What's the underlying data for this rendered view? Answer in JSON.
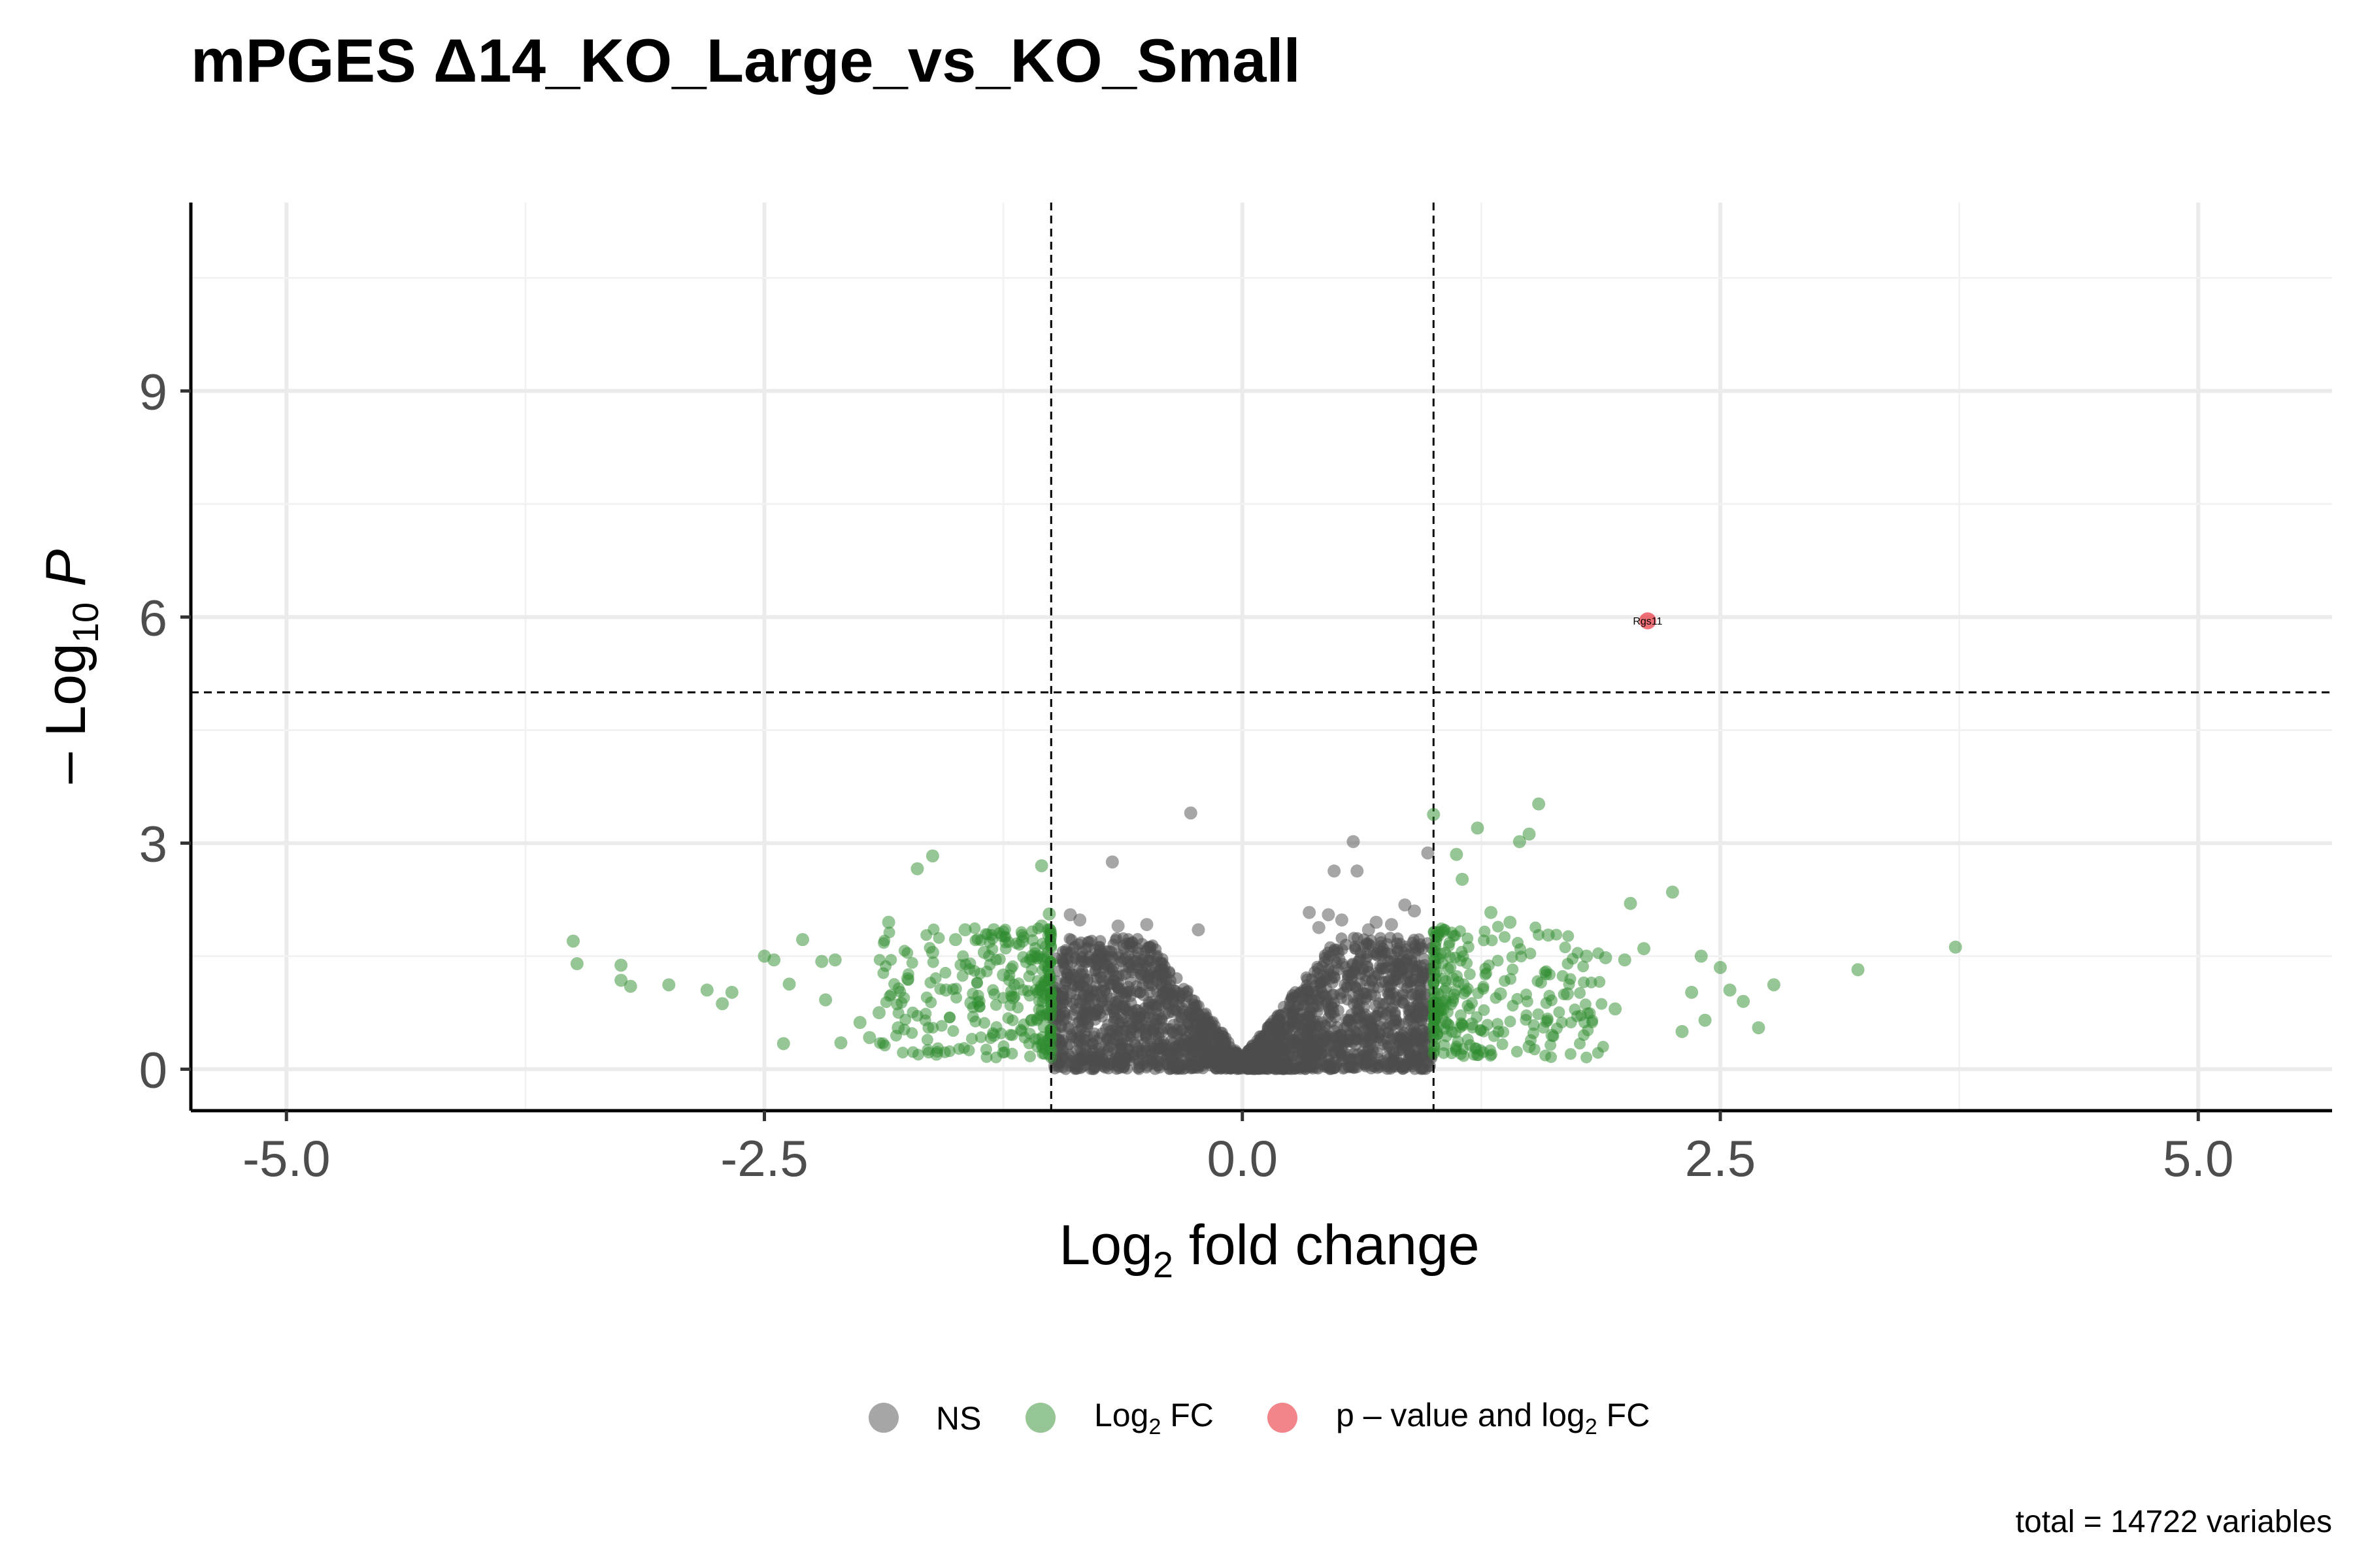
{
  "chart_data": {
    "type": "scatter",
    "title": "mPGES Δ14_KO_Large_vs_KO_Small",
    "xlabel": {
      "main": "Log",
      "sub": "2",
      "rest": " fold change"
    },
    "ylabel": {
      "prefix": "– Log",
      "sub": "10",
      "suffix": " P"
    },
    "xlim": [
      -5.5,
      5.7
    ],
    "ylim": [
      -0.55,
      11.5
    ],
    "x_ticks": [
      -5.0,
      -2.5,
      0.0,
      2.5,
      5.0
    ],
    "x_tick_labels": [
      "-5.0",
      "-2.5",
      "0.0",
      "2.5",
      "5.0"
    ],
    "y_ticks": [
      0,
      3,
      6,
      9
    ],
    "y_tick_labels": [
      "0",
      "3",
      "6",
      "9"
    ],
    "grid": true,
    "cutoffs": {
      "log2fc": [
        -1,
        1
      ],
      "neglog10p": 5
    },
    "colors": {
      "ns": "#4d4d4d",
      "log2fc": "#2e8b2e",
      "p_and_log2fc": "#e8333c"
    },
    "legend": {
      "position": "bottom",
      "items": [
        {
          "key": "ns",
          "label": "NS"
        },
        {
          "key": "log2fc",
          "label_main": "Log",
          "label_sub": "2",
          "label_rest": " FC"
        },
        {
          "key": "p_and_log2fc",
          "label_main": "p – value and log",
          "label_sub": "2",
          "label_rest": " FC"
        }
      ]
    },
    "caption": "total = 14722 variables",
    "series": [
      {
        "name": "NS",
        "key": "ns",
        "values": [
          [
            -0.27,
            3.4
          ],
          [
            -0.68,
            2.75
          ],
          [
            0.48,
            2.63
          ],
          [
            0.6,
            2.63
          ],
          [
            0.58,
            3.02
          ],
          [
            0.97,
            2.87
          ],
          [
            0.35,
            2.08
          ],
          [
            0.45,
            2.05
          ],
          [
            0.52,
            1.98
          ],
          [
            0.7,
            1.95
          ],
          [
            0.78,
            1.92
          ],
          [
            0.85,
            2.18
          ],
          [
            0.9,
            2.1
          ],
          [
            -0.5,
            1.92
          ],
          [
            -0.65,
            1.9
          ],
          [
            -0.85,
            1.98
          ],
          [
            -0.9,
            2.05
          ],
          [
            -0.23,
            1.85
          ],
          [
            0.4,
            1.88
          ],
          [
            0.66,
            1.85
          ]
        ]
      },
      {
        "name": "Log2 FC",
        "key": "log2fc",
        "values": [
          [
            -3.5,
            1.7
          ],
          [
            -3.48,
            1.4
          ],
          [
            -3.25,
            1.38
          ],
          [
            -3.25,
            1.18
          ],
          [
            -3.2,
            1.1
          ],
          [
            -3.0,
            1.12
          ],
          [
            -2.8,
            1.05
          ],
          [
            -2.72,
            0.87
          ],
          [
            -2.67,
            1.02
          ],
          [
            -2.5,
            1.5
          ],
          [
            -2.45,
            1.45
          ],
          [
            -2.4,
            0.34
          ],
          [
            -2.37,
            1.13
          ],
          [
            -2.3,
            1.72
          ],
          [
            -2.2,
            1.43
          ],
          [
            -2.13,
            1.45
          ],
          [
            -2.18,
            0.92
          ],
          [
            -2.1,
            0.35
          ],
          [
            -1.7,
            2.66
          ],
          [
            -1.62,
            2.83
          ],
          [
            -1.85,
            1.95
          ],
          [
            -1.05,
            2.7
          ],
          [
            -1.01,
            2.06
          ],
          [
            -1.9,
            0.75
          ],
          [
            -1.75,
            1.2
          ],
          [
            -1.62,
            1.55
          ],
          [
            -1.5,
            1.72
          ],
          [
            -1.42,
            0.88
          ],
          [
            -1.45,
            1.85
          ],
          [
            -1.35,
            1.55
          ],
          [
            -1.3,
            0.45
          ],
          [
            -1.25,
            1.25
          ],
          [
            -1.2,
            0.95
          ],
          [
            -1.15,
            1.7
          ],
          [
            -1.1,
            0.65
          ],
          [
            -1.95,
            0.42
          ],
          [
            -2.0,
            0.62
          ],
          [
            -1.8,
            0.55
          ],
          [
            -1.6,
            0.2
          ],
          [
            -1.55,
            1.05
          ],
          [
            -1.3,
            1.85
          ],
          [
            -1.1,
            1.5
          ],
          [
            -1.05,
            1.9
          ],
          [
            1.0,
            3.38
          ],
          [
            1.12,
            2.85
          ],
          [
            1.15,
            2.52
          ],
          [
            1.23,
            3.2
          ],
          [
            1.45,
            3.02
          ],
          [
            1.5,
            3.12
          ],
          [
            1.55,
            3.52
          ],
          [
            1.3,
            2.08
          ],
          [
            1.4,
            1.95
          ],
          [
            1.6,
            1.78
          ],
          [
            1.8,
            1.5
          ],
          [
            1.9,
            1.48
          ],
          [
            2.03,
            2.2
          ],
          [
            2.25,
            2.35
          ],
          [
            2.0,
            1.45
          ],
          [
            2.1,
            1.6
          ],
          [
            2.35,
            1.02
          ],
          [
            2.4,
            1.5
          ],
          [
            2.5,
            1.35
          ],
          [
            2.55,
            1.05
          ],
          [
            2.62,
            0.9
          ],
          [
            2.78,
            1.12
          ],
          [
            2.7,
            0.55
          ],
          [
            3.22,
            1.32
          ],
          [
            3.73,
            1.62
          ],
          [
            2.42,
            0.65
          ],
          [
            2.3,
            0.5
          ],
          [
            1.5,
            0.3
          ],
          [
            1.62,
            0.45
          ],
          [
            1.2,
            0.6
          ],
          [
            1.1,
            1.2
          ],
          [
            1.05,
            0.8
          ],
          [
            1.35,
            1.0
          ],
          [
            1.7,
            1.0
          ],
          [
            1.95,
            0.8
          ]
        ]
      },
      {
        "name": "p – value and log2 FC",
        "key": "p_and_log2fc",
        "values": [
          [
            2.12,
            5.95
          ]
        ]
      }
    ],
    "annotations": [
      {
        "text": "Rgs11",
        "x": 2.12,
        "y": 5.95
      }
    ]
  }
}
